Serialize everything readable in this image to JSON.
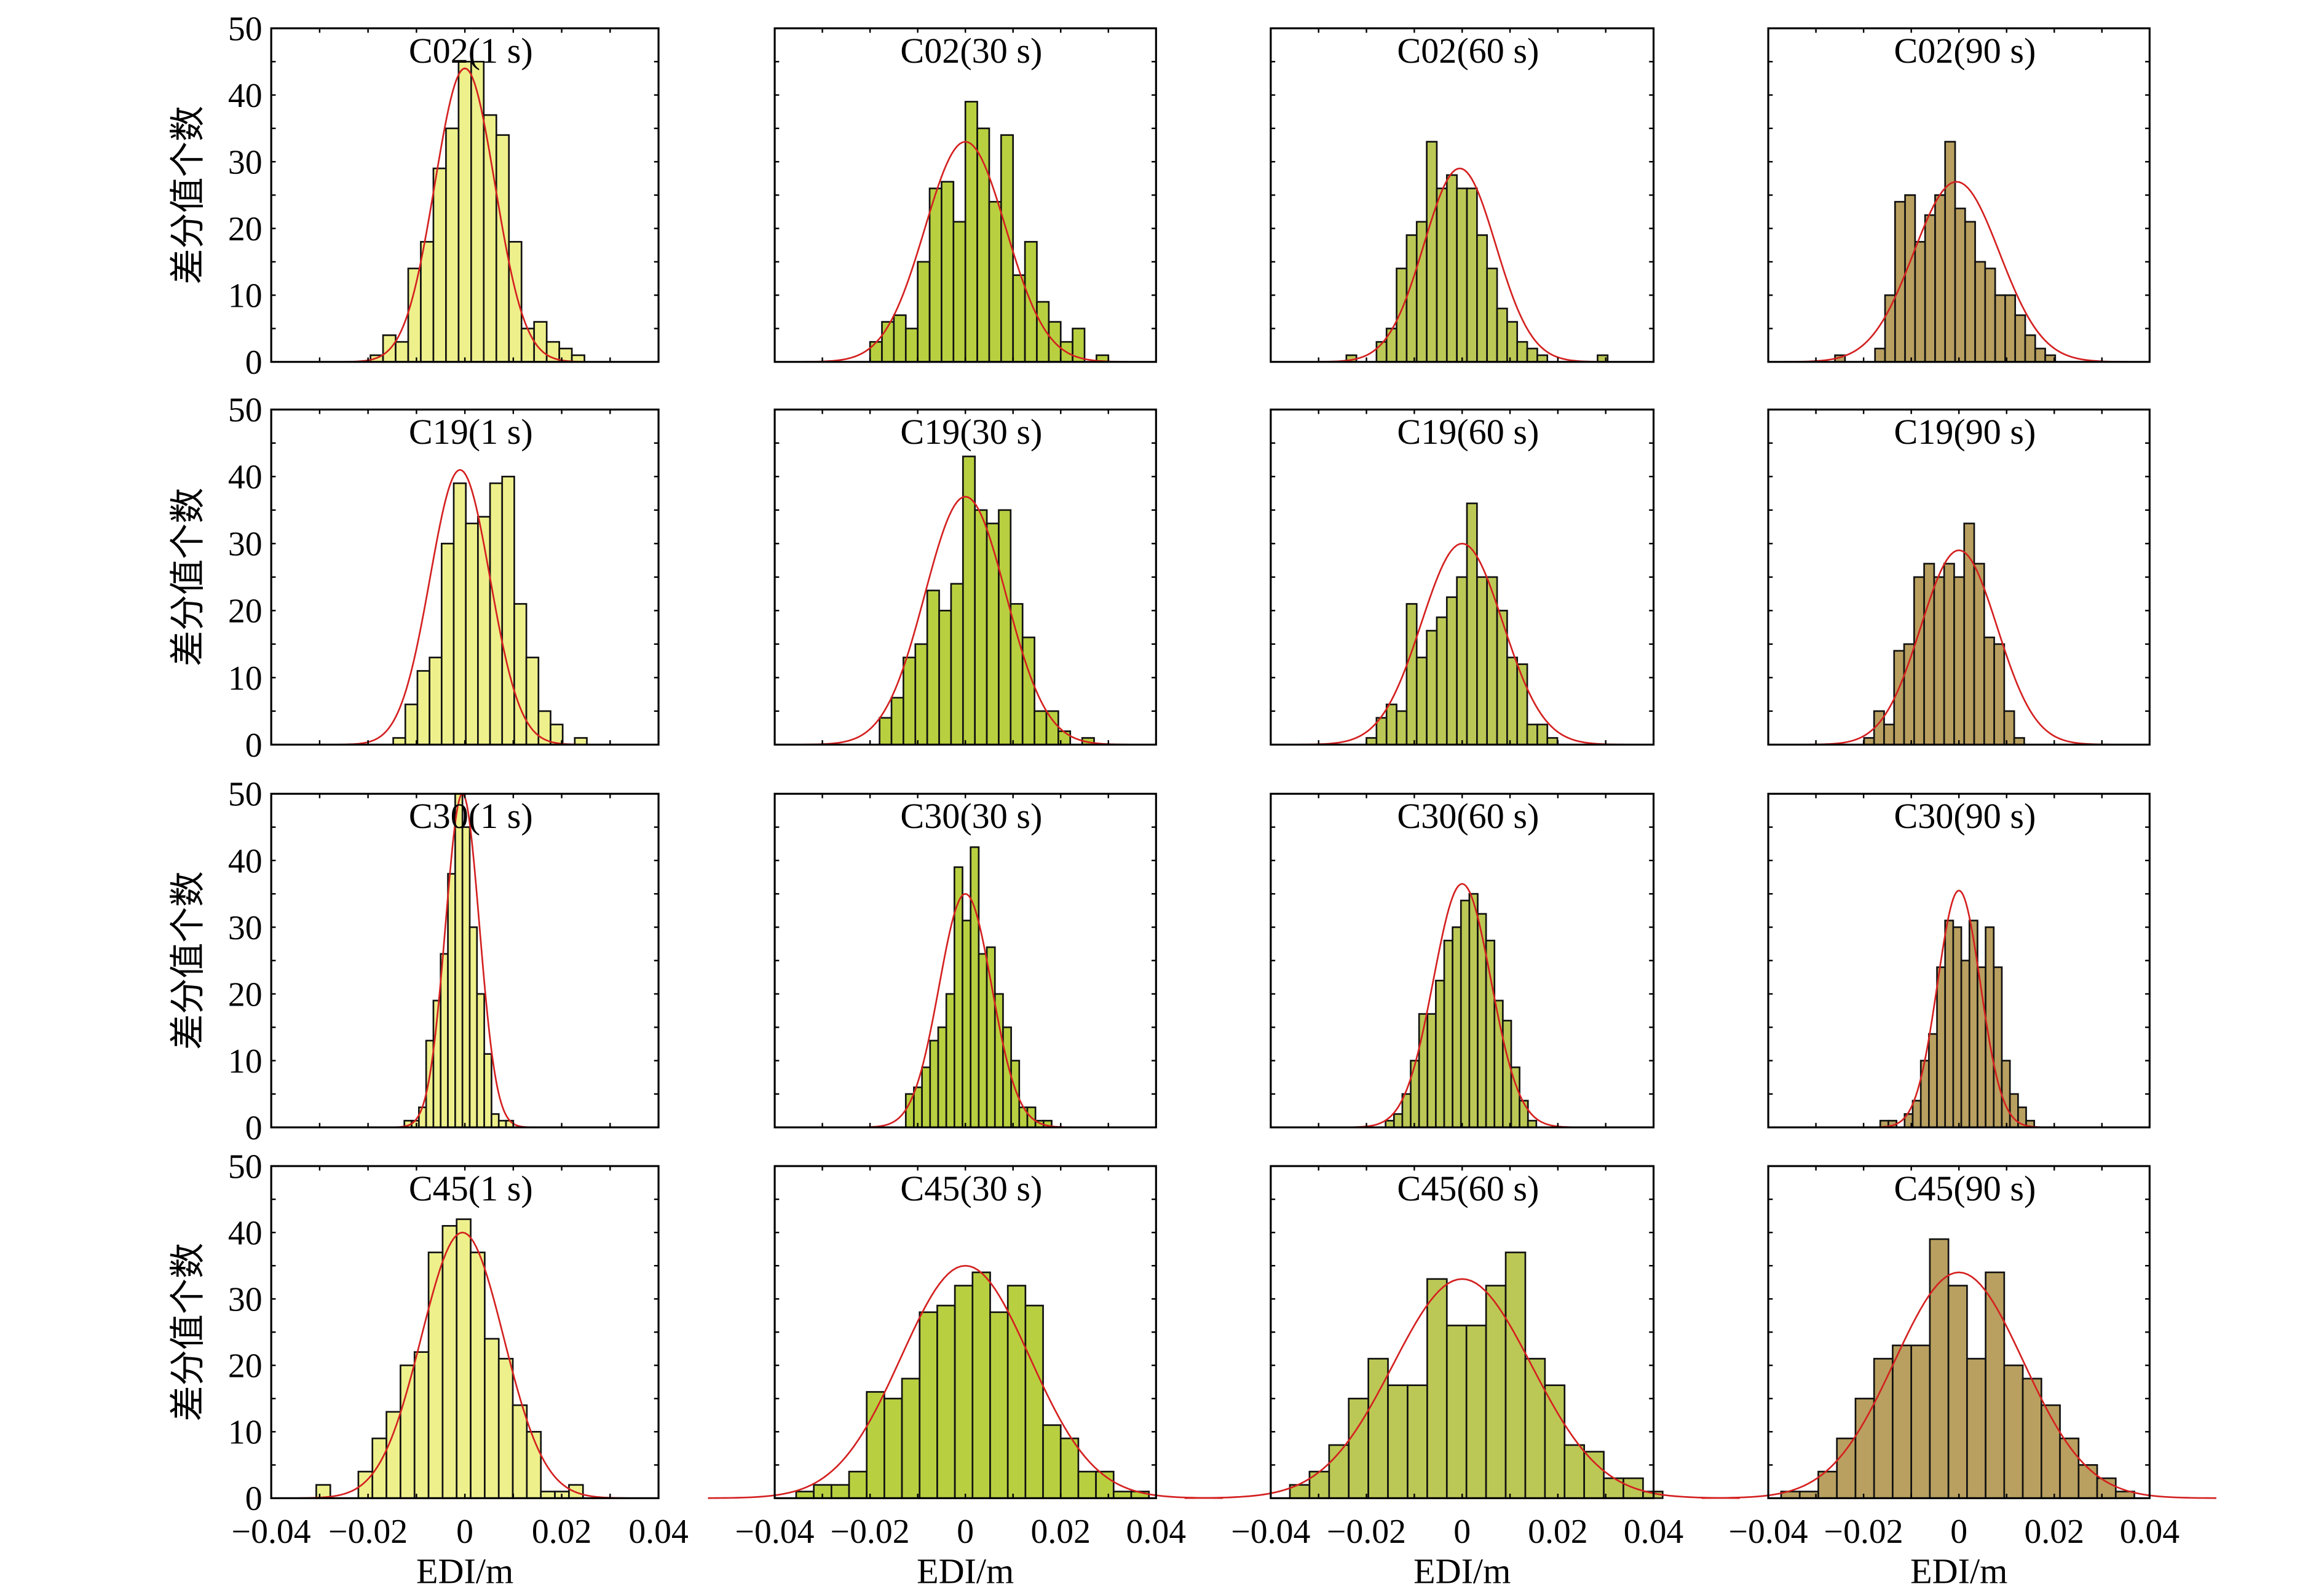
{
  "chart_data": {
    "type": "bar",
    "layout": "4x4 histogram grid with normal fit curves",
    "xlabel": "EDI/m",
    "ylabel": "差分值个数",
    "xlim": [
      -0.04,
      0.04
    ],
    "ylim": [
      0,
      50
    ],
    "xticks": [
      -0.04,
      -0.02,
      0,
      0.02,
      0.04
    ],
    "xtick_labels": [
      "−0.04",
      "−0.02",
      "0",
      "0.02",
      "0.04"
    ],
    "yticks": [
      0,
      10,
      20,
      30,
      40,
      50
    ],
    "ytick_labels": [
      "0",
      "10",
      "20",
      "30",
      "40",
      "50"
    ],
    "fit_color": "#d42020",
    "column_colors": [
      "#eef08c",
      "#b8d040",
      "#bcc855",
      "#b9a060"
    ],
    "panels": [
      {
        "title": "C02(1 s)",
        "start": -0.0195,
        "bin": 0.0026,
        "counts": [
          1,
          4,
          3,
          14,
          18,
          29,
          35,
          45,
          45,
          37,
          34,
          18,
          5,
          6,
          3,
          2,
          1
        ],
        "fit": {
          "mu": 0.0,
          "sigma": 0.0062,
          "peak": 44
        }
      },
      {
        "title": "C02(30 s)",
        "start": -0.02,
        "bin": 0.0025,
        "counts": [
          3,
          6,
          7,
          5,
          15,
          26,
          27,
          21,
          39,
          35,
          24,
          34,
          13,
          18,
          9,
          6,
          3,
          5,
          0,
          1
        ],
        "fit": {
          "mu": 0.0,
          "sigma": 0.0085,
          "peak": 33
        }
      },
      {
        "title": "C02(60 s)",
        "start": -0.0242,
        "bin": 0.0021,
        "counts": [
          1,
          0,
          0,
          3,
          5,
          14,
          19,
          21,
          33,
          26,
          28,
          26,
          26,
          19,
          14,
          8,
          6,
          3,
          2,
          1,
          0,
          0,
          0,
          0,
          0,
          1
        ],
        "fit": {
          "mu": -0.0005,
          "sigma": 0.0075,
          "peak": 29
        }
      },
      {
        "title": "C02(90 s)",
        "start": -0.026,
        "bin": 0.0021,
        "counts": [
          1,
          0,
          0,
          0,
          2,
          10,
          24,
          25,
          18,
          22,
          25,
          33,
          23,
          21,
          15,
          14,
          10,
          10,
          7,
          4,
          2,
          1
        ],
        "fit": {
          "mu": -0.0005,
          "sigma": 0.009,
          "peak": 27
        }
      },
      {
        "title": "C19(1 s)",
        "start": -0.0148,
        "bin": 0.0025,
        "counts": [
          1,
          6,
          11,
          13,
          30,
          39,
          33,
          34,
          39,
          40,
          21,
          13,
          5,
          3,
          0,
          1
        ],
        "fit": {
          "mu": -0.001,
          "sigma": 0.0062,
          "peak": 41
        }
      },
      {
        "title": "C19(30 s)",
        "start": -0.018,
        "bin": 0.0025,
        "counts": [
          4,
          7,
          13,
          15,
          23,
          20,
          24,
          43,
          35,
          33,
          35,
          21,
          16,
          5,
          5,
          2,
          0,
          1
        ],
        "fit": {
          "mu": 0.0,
          "sigma": 0.0085,
          "peak": 37
        }
      },
      {
        "title": "C19(60 s)",
        "start": -0.02,
        "bin": 0.0021,
        "counts": [
          1,
          4,
          6,
          5,
          21,
          13,
          17,
          19,
          22,
          25,
          36,
          25,
          25,
          20,
          13,
          12,
          3,
          3,
          1
        ],
        "fit": {
          "mu": 0.0,
          "sigma": 0.0085,
          "peak": 30
        }
      },
      {
        "title": "C19(90 s)",
        "start": -0.0199,
        "bin": 0.0021,
        "counts": [
          1,
          5,
          3,
          14,
          15,
          25,
          27,
          25,
          27,
          25,
          33,
          27,
          16,
          15,
          5,
          1
        ],
        "fit": {
          "mu": 0.0,
          "sigma": 0.008,
          "peak": 29
        }
      },
      {
        "title": "C30(1 s)",
        "start": -0.0125,
        "bin": 0.0015,
        "counts": [
          1,
          1,
          3,
          13,
          19,
          26,
          38,
          50,
          45,
          30,
          20,
          11,
          2,
          1,
          1
        ],
        "fit": {
          "mu": -0.0005,
          "sigma": 0.0035,
          "peak": 50
        }
      },
      {
        "title": "C30(30 s)",
        "start": -0.0125,
        "bin": 0.0017,
        "counts": [
          5,
          6,
          9,
          13,
          15,
          20,
          39,
          31,
          42,
          26,
          27,
          20,
          15,
          10,
          3,
          3,
          1,
          1
        ],
        "fit": {
          "mu": 0.0,
          "sigma": 0.0055,
          "peak": 35
        }
      },
      {
        "title": "C30(60 s)",
        "start": -0.016,
        "bin": 0.00175,
        "counts": [
          1,
          2,
          5,
          10,
          17,
          17,
          22,
          28,
          30,
          34,
          35,
          32,
          28,
          19,
          16,
          9,
          4,
          1
        ],
        "fit": {
          "mu": 0.0,
          "sigma": 0.006,
          "peak": 36.5
        }
      },
      {
        "title": "C30(90 s)",
        "start": -0.0165,
        "bin": 0.0017,
        "counts": [
          1,
          1,
          0,
          2,
          4,
          10,
          14,
          24,
          31,
          30,
          25,
          31,
          24,
          30,
          24,
          10,
          5,
          3,
          1
        ],
        "fit": {
          "mu": 0.0,
          "sigma": 0.0045,
          "peak": 35.5
        }
      },
      {
        "title": "C45(1 s)",
        "start": -0.0307,
        "bin": 0.0029,
        "counts": [
          2,
          0,
          0,
          4,
          9,
          13,
          20,
          22,
          37,
          41,
          42,
          37,
          24,
          21,
          14,
          10,
          1,
          1,
          2
        ],
        "fit": {
          "mu": -0.0005,
          "sigma": 0.0085,
          "peak": 40
        }
      },
      {
        "title": "C45(30 s)",
        "start": -0.0355,
        "bin": 0.0037,
        "counts": [
          1,
          2,
          2,
          4,
          16,
          15,
          18,
          28,
          29,
          32,
          34,
          28,
          32,
          29,
          11,
          9,
          4,
          4,
          1,
          1
        ],
        "fit": {
          "mu": 0.0,
          "sigma": 0.0135,
          "peak": 35
        }
      },
      {
        "title": "C45(60 s)",
        "start": -0.036,
        "bin": 0.0041,
        "counts": [
          2,
          4,
          8,
          15,
          21,
          17,
          17,
          33,
          26,
          26,
          32,
          37,
          21,
          17,
          8,
          7,
          3,
          3,
          1
        ],
        "fit": {
          "mu": 0.0,
          "sigma": 0.0145,
          "peak": 33
        }
      },
      {
        "title": "C45(90 s)",
        "start": -0.0373,
        "bin": 0.0039,
        "counts": [
          1,
          1,
          4,
          9,
          15,
          21,
          23,
          23,
          39,
          32,
          21,
          34,
          20,
          18,
          14,
          9,
          5,
          3,
          1
        ],
        "fit": {
          "mu": 0.0,
          "sigma": 0.0135,
          "peak": 34
        }
      }
    ]
  }
}
